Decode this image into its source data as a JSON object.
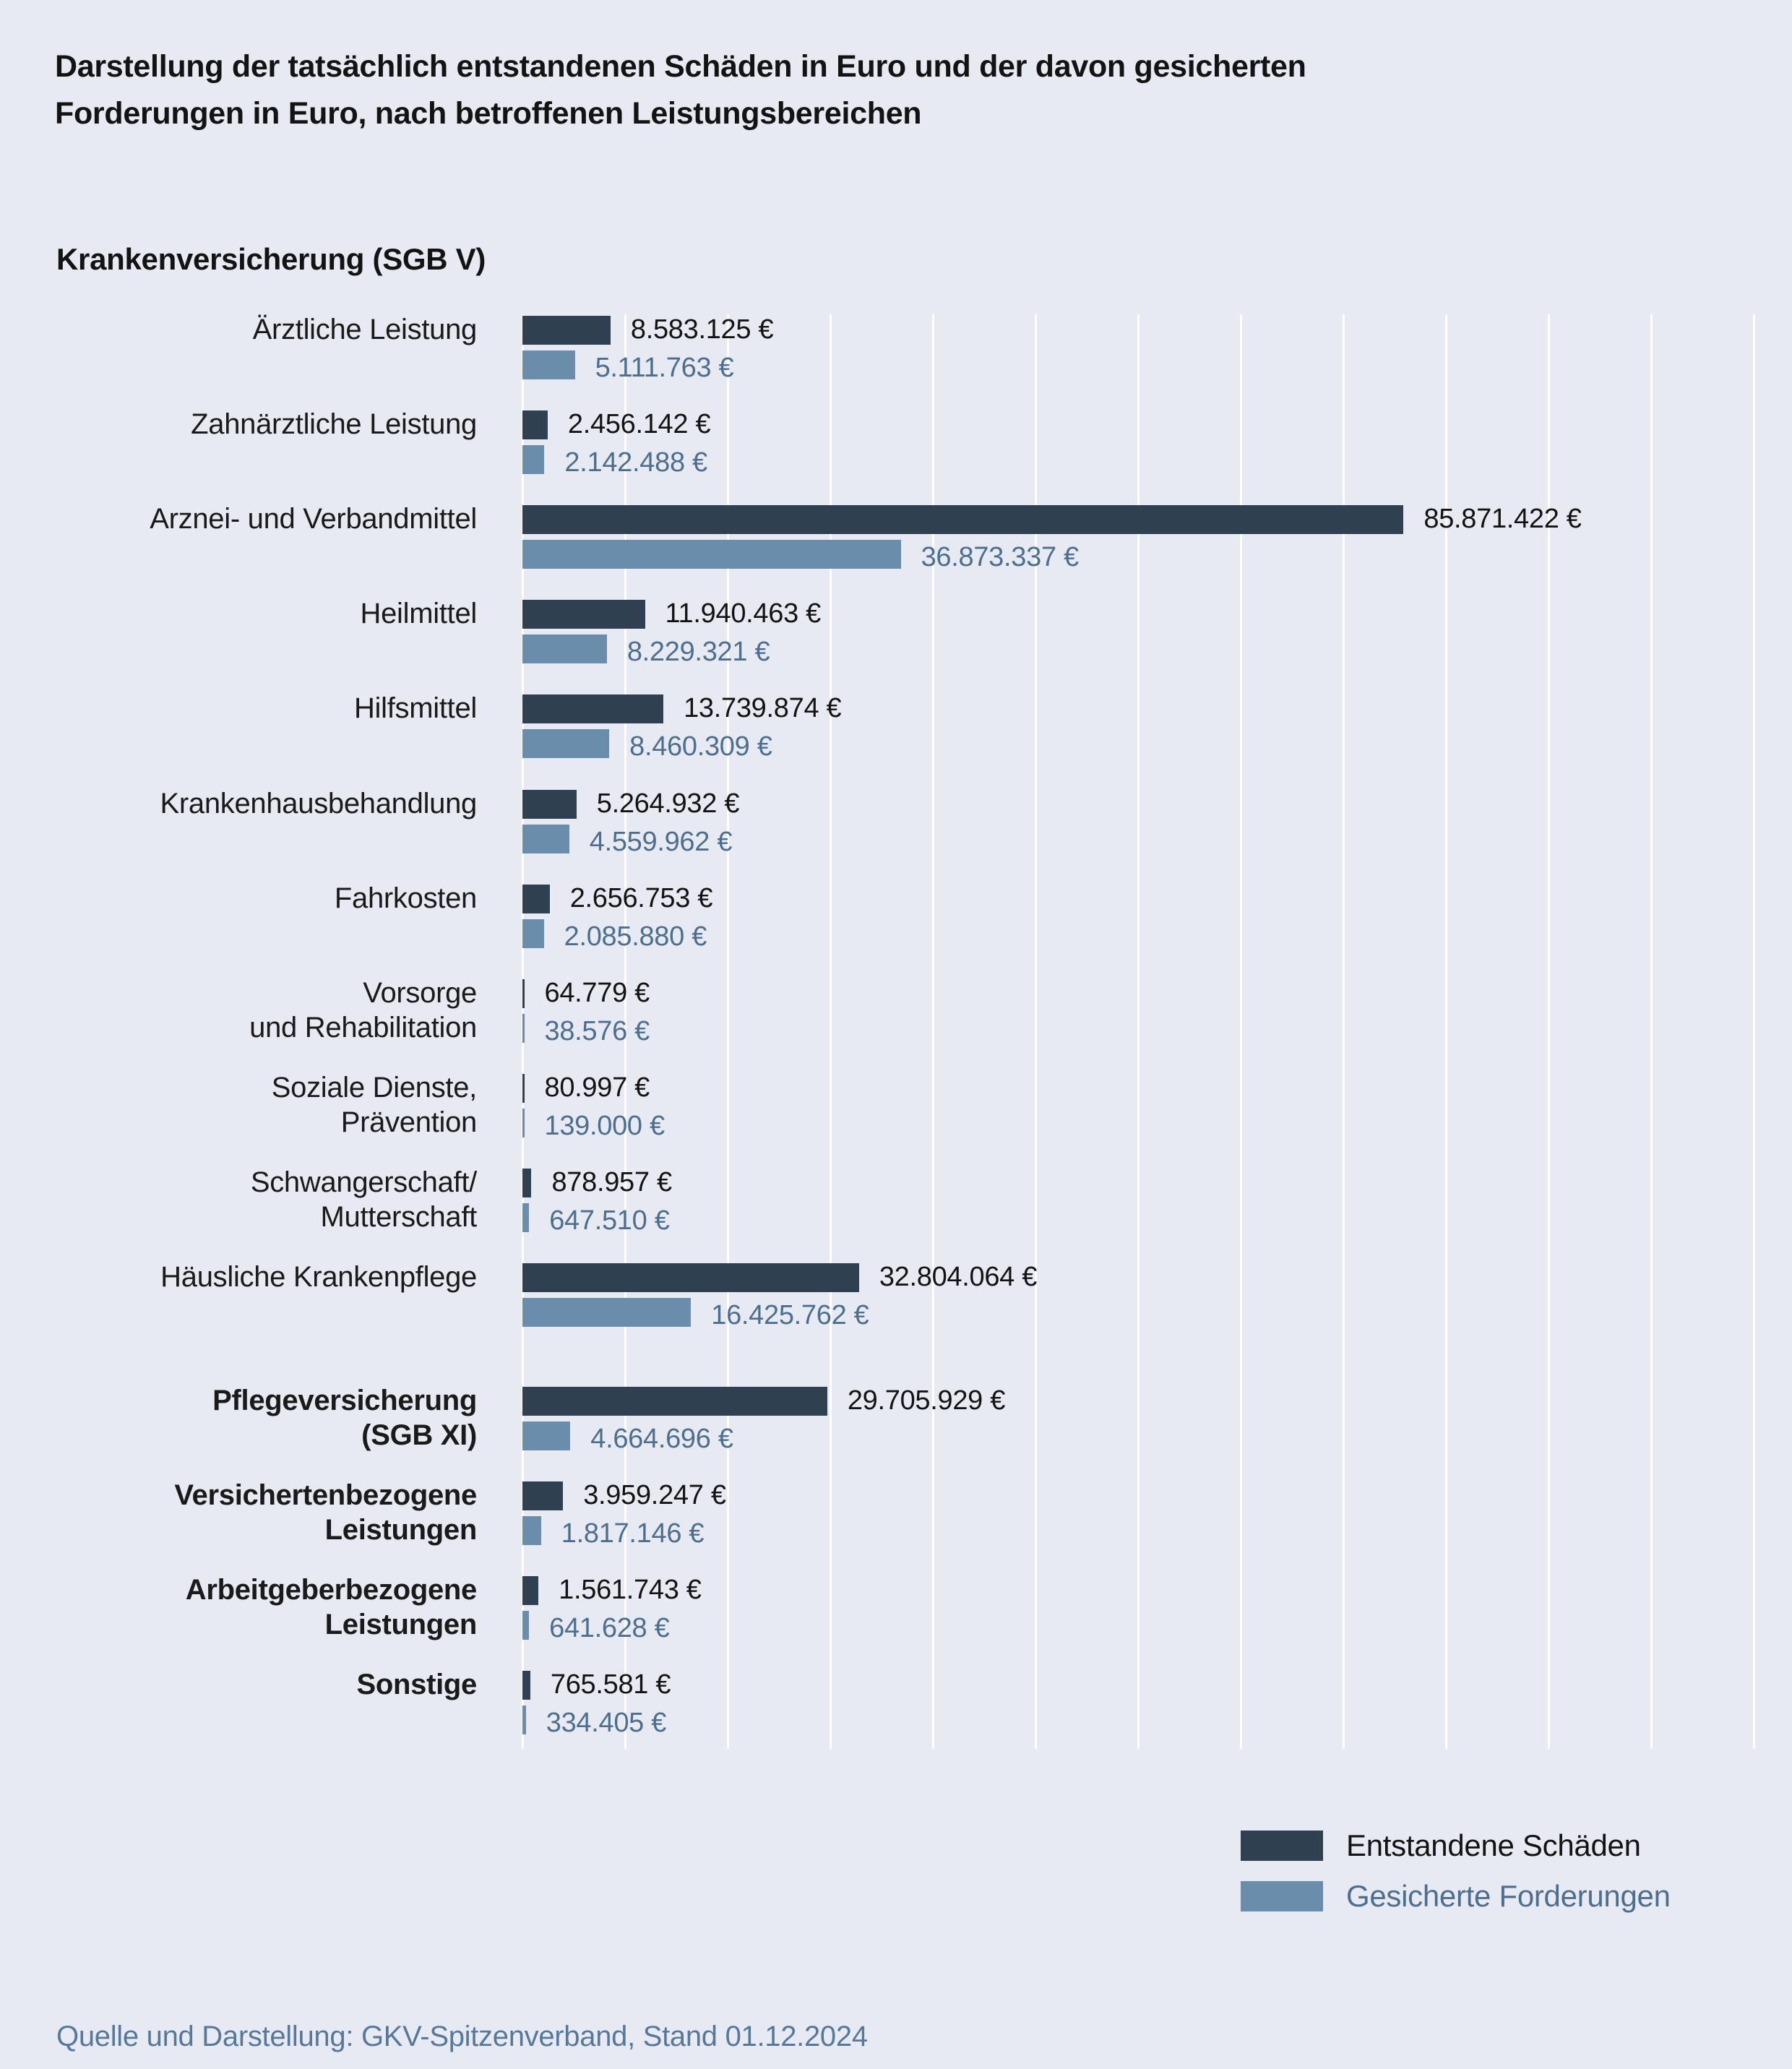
{
  "page": {
    "title_lines": [
      "Darstellung der tatsächlich entstandenen Schäden in Euro und der davon gesicherten",
      "Forderungen in Euro, nach betroffenen Leistungsbereichen"
    ],
    "source_note": "Quelle und Darstellung: GKV-Spitzenverband, Stand 01.12.2024"
  },
  "sections": {
    "sgbv_heading": "Krankenversicherung (SGB V)"
  },
  "legend": {
    "items": [
      {
        "id": "damage",
        "label": "Entstandene Schäden"
      },
      {
        "id": "secured",
        "label": "Gesicherte Forderungen"
      }
    ]
  },
  "colors": {
    "background": "#E7EAF2",
    "damage_bar": "#2F4050",
    "secured_bar": "#6A8DAB",
    "gridline": "#FFFFFF",
    "text_dark": "#131313",
    "secured_text": "#4D6F8D",
    "source_text": "#56789B"
  },
  "chart_data": {
    "type": "bar",
    "orientation": "horizontal",
    "title": "Darstellung der tatsächlich entstandenen Schäden in Euro und der davon gesicherten Forderungen in Euro, nach betroffenen Leistungsbereichen",
    "unit": "€",
    "axis": {
      "min": 0,
      "max": 120000000,
      "gridline_step": 10000000,
      "gridlines_visible": true,
      "tick_labels_visible": false
    },
    "series": [
      "Entstandene Schäden",
      "Gesicherte Forderungen"
    ],
    "groups": [
      "Krankenversicherung (SGB V)",
      "Pflegeversicherung (SGB XI)"
    ],
    "rows": [
      {
        "label_lines": [
          "Ärztliche Leistung"
        ],
        "bold": false,
        "group": "SGB V",
        "damage_eur": 8583125,
        "damage_label": "8.583.125 €",
        "secured_eur": 5111763,
        "secured_label": "5.111.763 €"
      },
      {
        "label_lines": [
          "Zahnärztliche Leistung"
        ],
        "bold": false,
        "group": "SGB V",
        "damage_eur": 2456142,
        "damage_label": "2.456.142 €",
        "secured_eur": 2142488,
        "secured_label": "2.142.488 €"
      },
      {
        "label_lines": [
          "Arznei- und Verbandmittel"
        ],
        "bold": false,
        "group": "SGB V",
        "damage_eur": 85871422,
        "damage_label": "85.871.422 €",
        "secured_eur": 36873337,
        "secured_label": "36.873.337 €"
      },
      {
        "label_lines": [
          "Heilmittel"
        ],
        "bold": false,
        "group": "SGB V",
        "damage_eur": 11940463,
        "damage_label": "11.940.463 €",
        "secured_eur": 8229321,
        "secured_label": "8.229.321 €"
      },
      {
        "label_lines": [
          "Hilfsmittel"
        ],
        "bold": false,
        "group": "SGB V",
        "damage_eur": 13739874,
        "damage_label": "13.739.874 €",
        "secured_eur": 8460309,
        "secured_label": "8.460.309 €"
      },
      {
        "label_lines": [
          "Krankenhausbehandlung"
        ],
        "bold": false,
        "group": "SGB V",
        "damage_eur": 5264932,
        "damage_label": "5.264.932 €",
        "secured_eur": 4559962,
        "secured_label": "4.559.962 €"
      },
      {
        "label_lines": [
          "Fahrkosten"
        ],
        "bold": false,
        "group": "SGB V",
        "damage_eur": 2656753,
        "damage_label": "2.656.753 €",
        "secured_eur": 2085880,
        "secured_label": "2.085.880 €"
      },
      {
        "label_lines": [
          "Vorsorge",
          "und Rehabilitation"
        ],
        "bold": false,
        "group": "SGB V",
        "damage_eur": 64779,
        "damage_label": "64.779 €",
        "secured_eur": 38576,
        "secured_label": "38.576 €"
      },
      {
        "label_lines": [
          "Soziale Dienste,",
          "Prävention"
        ],
        "bold": false,
        "group": "SGB V",
        "damage_eur": 80997,
        "damage_label": "80.997 €",
        "secured_eur": 139000,
        "secured_label": "139.000 €"
      },
      {
        "label_lines": [
          "Schwangerschaft/",
          "Mutterschaft"
        ],
        "bold": false,
        "group": "SGB V",
        "damage_eur": 878957,
        "damage_label": "878.957 €",
        "secured_eur": 647510,
        "secured_label": "647.510 €"
      },
      {
        "label_lines": [
          "Häusliche Krankenpflege"
        ],
        "bold": false,
        "group": "SGB V",
        "damage_eur": 32804064,
        "damage_label": "32.804.064 €",
        "secured_eur": 16425762,
        "secured_label": "16.425.762 €"
      },
      {
        "label_lines": [
          "Pflegeversicherung",
          "(SGB XI)"
        ],
        "bold": true,
        "group": "SGB XI",
        "damage_eur": 29705929,
        "damage_label": "29.705.929 €",
        "secured_eur": 4664696,
        "secured_label": "4.664.696 €"
      },
      {
        "label_lines": [
          "Versichertenbezogene",
          "Leistungen"
        ],
        "bold": true,
        "group": "SGB XI",
        "damage_eur": 3959247,
        "damage_label": "3.959.247 €",
        "secured_eur": 1817146,
        "secured_label": "1.817.146 €"
      },
      {
        "label_lines": [
          "Arbeitgeberbezogene",
          "Leistungen"
        ],
        "bold": true,
        "group": "SGB XI",
        "damage_eur": 1561743,
        "damage_label": "1.561.743 €",
        "secured_eur": 641628,
        "secured_label": "641.628 €"
      },
      {
        "label_lines": [
          "Sonstige"
        ],
        "bold": true,
        "group": "SGB XI",
        "damage_eur": 765581,
        "damage_label": "765.581 €",
        "secured_eur": 334405,
        "secured_label": "334.405 €"
      }
    ]
  }
}
